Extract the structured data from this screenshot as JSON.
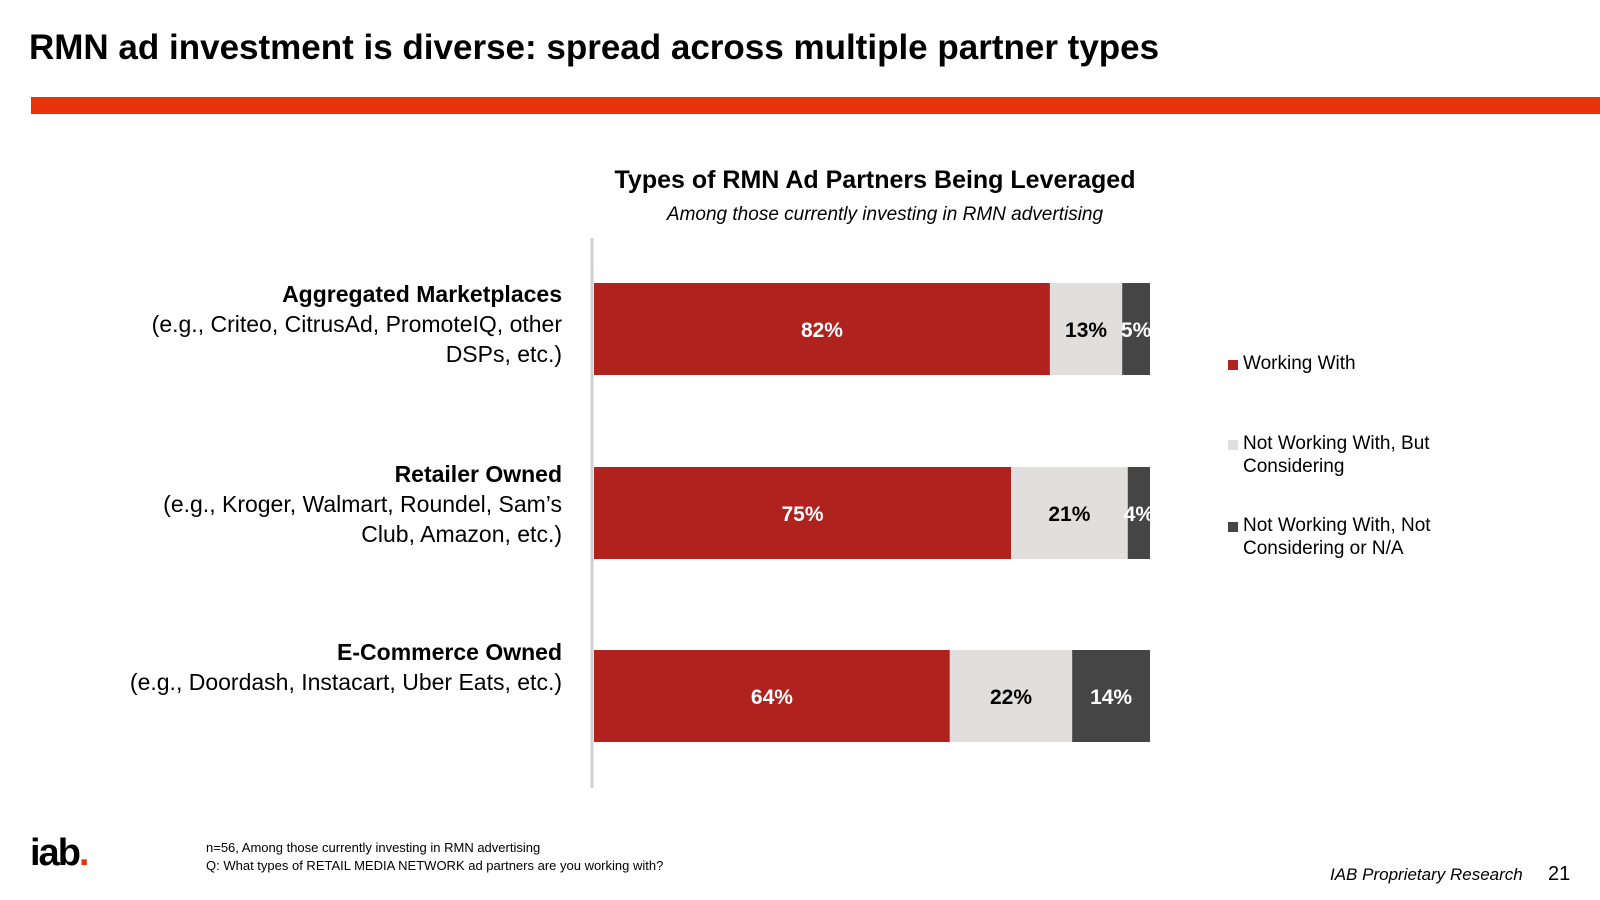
{
  "slide": {
    "title": "RMN ad investment is diverse: spread across multiple partner types",
    "accent_color": "#e8340b"
  },
  "chart_data": {
    "type": "bar",
    "orientation": "horizontal",
    "stacked": true,
    "title": "Types of RMN Ad Partners Being Leveraged",
    "subtitle": "Among those currently investing in RMN advertising",
    "categories": [
      {
        "name": "Aggregated Marketplaces",
        "description": "(e.g., Criteo, CitrusAd, PromoteIQ, other DSPs, etc.)"
      },
      {
        "name": "Retailer Owned",
        "description": "(e.g., Kroger, Walmart, Roundel, Sam’s Club, Amazon, etc.)"
      },
      {
        "name": "E-Commerce Owned",
        "description": "(e.g., Doordash, Instacart, Uber Eats, etc.)"
      }
    ],
    "series": [
      {
        "name": "Working With",
        "values": [
          82,
          75,
          64
        ],
        "labels": [
          "82%",
          "75%",
          "64%"
        ],
        "color": "#b0221e",
        "label_color": "#ffffff"
      },
      {
        "name": "Not Working With, But Considering",
        "values": [
          13,
          21,
          22
        ],
        "labels": [
          "13%",
          "21%",
          "22%"
        ],
        "color": "#e0dfde",
        "label_color": "#000000"
      },
      {
        "name": "Not Working With, Not Considering or N/A",
        "values": [
          5,
          4,
          14
        ],
        "labels": [
          "5%",
          "4%",
          "14%"
        ],
        "color": "#454545",
        "label_color": "#ffffff"
      }
    ],
    "xlim": [
      0,
      100
    ],
    "legend_position": "right",
    "grid": false
  },
  "footnotes": {
    "line1": "n=56, Among those currently investing in RMN advertising",
    "line2": "Q: What types of RETAIL MEDIA NETWORK ad partners are you working with?"
  },
  "footer": {
    "logo_text": "iab",
    "logo_dot": ".",
    "source": "IAB Proprietary Research",
    "page_number": "21"
  }
}
